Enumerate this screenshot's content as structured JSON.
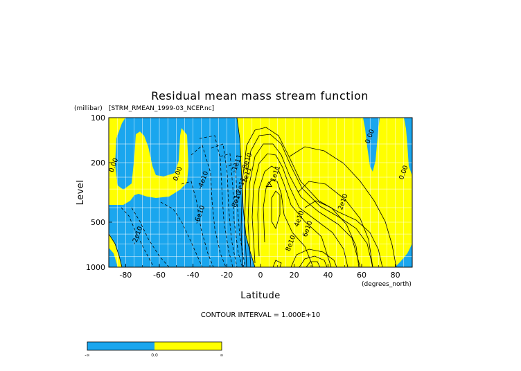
{
  "chart_data": {
    "type": "contour",
    "title": "Residual mean mass stream function",
    "source_file": "[STRM_RMEAN_1999-03_NCEP.nc]",
    "ylabel": "Level",
    "yunits": "(millibar)",
    "xlabel": "Latitude",
    "xunits": "(degrees_north)",
    "xlim": [
      -90,
      90
    ],
    "ylim": [
      1000,
      100
    ],
    "yscale": "log",
    "x_ticks": [
      -80,
      -60,
      -40,
      -20,
      0,
      20,
      40,
      60,
      80
    ],
    "x_tick_labels": [
      "-80",
      "-60",
      "-40",
      "-20",
      "0",
      "20",
      "40",
      "60",
      "80"
    ],
    "y_ticks": [
      100,
      200,
      500,
      1000
    ],
    "y_tick_labels": [
      "100",
      "200",
      "500",
      "1000"
    ],
    "grid": true,
    "contour_interval_text": "CONTOUR INTERVAL = 1.000E+10",
    "contour_interval": 10000000000.0,
    "fill_colors": {
      "negative": "#1aa6ee",
      "positive": "#ffff00"
    },
    "contour_labels": [
      {
        "text": "0.00",
        "lat": -86,
        "lev": 210
      },
      {
        "text": "0.00",
        "lat": -48,
        "lev": 240
      },
      {
        "text": "-2e10",
        "lat": -72,
        "lev": 620
      },
      {
        "text": "-4e10",
        "lat": -33,
        "lev": 265
      },
      {
        "text": "-6e10",
        "lat": -35,
        "lev": 450
      },
      {
        "text": "-1e11",
        "lat": -13,
        "lev": 205
      },
      {
        "text": "-8e10",
        "lat": -7,
        "lev": 200
      },
      {
        "text": "1e11",
        "lat": -7,
        "lev": 245
      },
      {
        "text": "1.2e11",
        "lat": -11,
        "lev": 300
      },
      {
        "text": "8e10",
        "lat": -13,
        "lev": 355
      },
      {
        "text": "1e11",
        "lat": 10,
        "lev": 240
      },
      {
        "text": "2e10",
        "lat": 50,
        "lev": 370
      },
      {
        "text": "4e10",
        "lat": 24,
        "lev": 480
      },
      {
        "text": "6e10",
        "lat": 29,
        "lev": 560
      },
      {
        "text": "8e10",
        "lat": 19,
        "lev": 700
      },
      {
        "text": "0.00",
        "lat": 66,
        "lev": 135
      },
      {
        "text": "0.00",
        "lat": 86,
        "lev": 235
      }
    ],
    "extrema": {
      "max_lat": 5,
      "max_lev": 280
    },
    "colorbar": {
      "labels": [
        "-∞",
        "0.0",
        "∞"
      ]
    }
  }
}
